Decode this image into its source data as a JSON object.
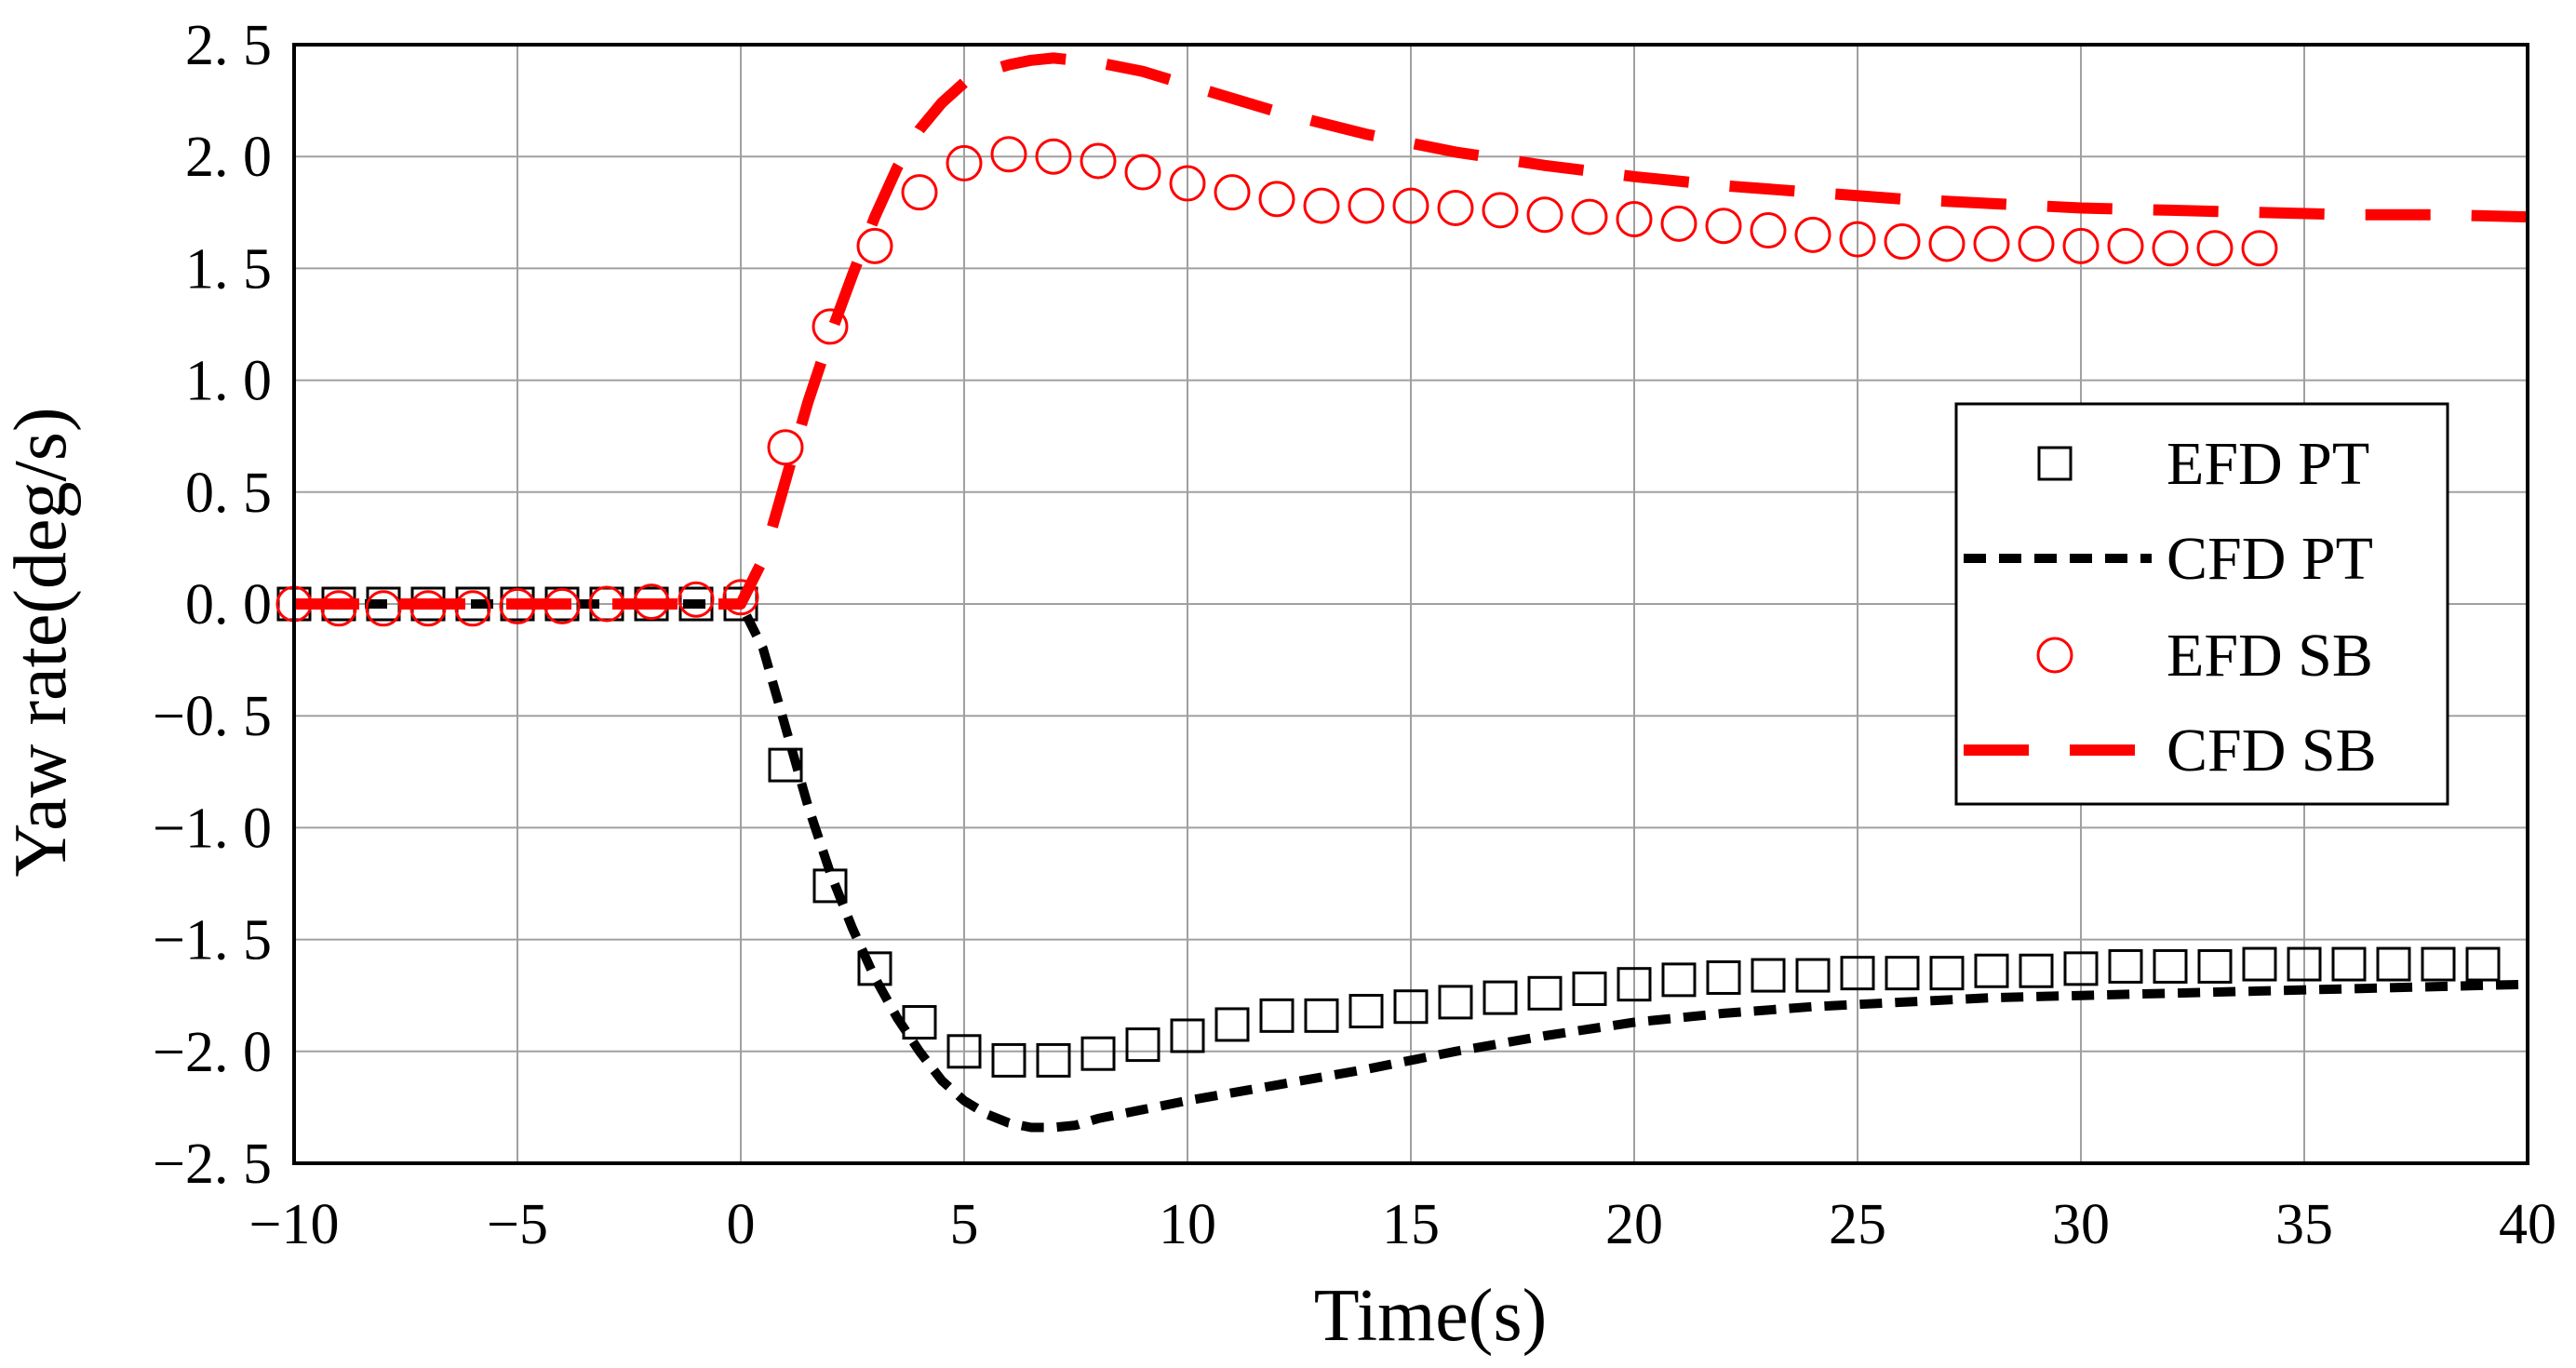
{
  "chart_data": {
    "type": "line",
    "title": "",
    "xlabel": "Time(s)",
    "ylabel": "Yaw rate(deg/s)",
    "xlim": [
      -10,
      40
    ],
    "ylim": [
      -2.5,
      2.5
    ],
    "grid": true,
    "legend_position": "right",
    "x_ticks": [
      -10,
      -5,
      0,
      5,
      10,
      15,
      20,
      25,
      30,
      35,
      40
    ],
    "y_ticks": [
      2.5,
      2.0,
      1.5,
      1.0,
      0.5,
      0.0,
      -0.5,
      -1.0,
      -1.5,
      -2.0,
      -2.5
    ],
    "x_tick_labels": [
      "−10",
      "−5",
      "0",
      "5",
      "10",
      "15",
      "20",
      "25",
      "30",
      "35",
      "40"
    ],
    "y_tick_labels": [
      "2. 5",
      "2. 0",
      "1. 5",
      "1. 0",
      "0. 5",
      "0. 0",
      "−0. 5",
      "−1. 0",
      "−1. 5",
      "−2. 0",
      "−2. 5"
    ],
    "series": [
      {
        "name": "EFD PT",
        "style": "square-marker",
        "color": "#000000",
        "x": [
          -10,
          -9,
          -8,
          -7,
          -6,
          -5,
          -4,
          -3,
          -2,
          -1,
          0,
          1,
          2,
          3,
          4,
          5,
          6,
          7,
          8,
          9,
          10,
          11,
          12,
          13,
          14,
          15,
          16,
          17,
          18,
          19,
          20,
          21,
          22,
          23,
          24,
          25,
          26,
          27,
          28,
          29,
          30,
          31,
          32,
          33,
          34,
          35,
          36,
          37,
          38,
          39
        ],
        "y": [
          0.0,
          0.0,
          0.0,
          0.0,
          0.0,
          0.0,
          0.0,
          0.0,
          0.0,
          0.0,
          0.0,
          -0.72,
          -1.26,
          -1.63,
          -1.87,
          -2.0,
          -2.04,
          -2.04,
          -2.01,
          -1.97,
          -1.93,
          -1.88,
          -1.84,
          -1.84,
          -1.82,
          -1.8,
          -1.78,
          -1.76,
          -1.74,
          -1.72,
          -1.7,
          -1.68,
          -1.67,
          -1.66,
          -1.66,
          -1.65,
          -1.65,
          -1.65,
          -1.64,
          -1.64,
          -1.63,
          -1.62,
          -1.62,
          -1.62,
          -1.61,
          -1.61,
          -1.61,
          -1.61,
          -1.61,
          -1.61
        ]
      },
      {
        "name": "CFD PT",
        "style": "short-dash",
        "color": "#000000",
        "x": [
          -10,
          -5,
          0,
          0.5,
          1,
          1.5,
          2,
          2.5,
          3,
          3.5,
          4,
          4.5,
          5,
          5.5,
          6,
          6.5,
          7,
          7.5,
          8,
          9,
          10,
          12,
          14,
          16,
          18,
          20,
          22,
          24,
          26,
          28,
          30,
          32,
          34,
          36,
          38,
          40
        ],
        "y": [
          0.0,
          0.0,
          0.0,
          -0.2,
          -0.55,
          -0.9,
          -1.2,
          -1.45,
          -1.67,
          -1.85,
          -2.0,
          -2.13,
          -2.22,
          -2.28,
          -2.32,
          -2.34,
          -2.34,
          -2.33,
          -2.3,
          -2.26,
          -2.22,
          -2.15,
          -2.08,
          -2.0,
          -1.93,
          -1.87,
          -1.83,
          -1.8,
          -1.78,
          -1.76,
          -1.75,
          -1.74,
          -1.73,
          -1.72,
          -1.71,
          -1.7
        ]
      },
      {
        "name": "EFD SB",
        "style": "circle-marker",
        "color": "#ff0000",
        "x": [
          -10,
          -9,
          -8,
          -7,
          -6,
          -5,
          -4,
          -3,
          -2,
          -1,
          0,
          1,
          2,
          3,
          4,
          5,
          6,
          7,
          8,
          9,
          10,
          11,
          12,
          13,
          14,
          15,
          16,
          17,
          18,
          19,
          20,
          21,
          22,
          23,
          24,
          25,
          26,
          27,
          28,
          29,
          30,
          31,
          32,
          33,
          34
        ],
        "y": [
          0.0,
          -0.02,
          -0.02,
          -0.02,
          -0.02,
          -0.01,
          -0.01,
          0.0,
          0.01,
          0.02,
          0.03,
          0.7,
          1.24,
          1.6,
          1.84,
          1.97,
          2.01,
          2.0,
          1.98,
          1.93,
          1.88,
          1.84,
          1.81,
          1.78,
          1.78,
          1.78,
          1.77,
          1.76,
          1.74,
          1.73,
          1.72,
          1.7,
          1.69,
          1.67,
          1.65,
          1.63,
          1.62,
          1.61,
          1.61,
          1.61,
          1.6,
          1.6,
          1.59,
          1.59,
          1.59
        ]
      },
      {
        "name": "CFD SB",
        "style": "long-dash",
        "color": "#ff0000",
        "x": [
          -10,
          -5,
          0,
          0.5,
          1,
          1.5,
          2,
          2.5,
          3,
          3.5,
          4,
          4.5,
          5,
          5.5,
          6,
          6.5,
          7,
          8,
          9,
          10,
          12,
          14,
          16,
          18,
          20,
          22,
          24,
          26,
          28,
          30,
          32,
          34,
          36,
          38,
          40
        ],
        "y": [
          0.0,
          0.0,
          0.0,
          0.2,
          0.55,
          0.9,
          1.2,
          1.47,
          1.73,
          1.95,
          2.12,
          2.24,
          2.33,
          2.38,
          2.41,
          2.43,
          2.44,
          2.42,
          2.38,
          2.32,
          2.2,
          2.1,
          2.02,
          1.96,
          1.91,
          1.87,
          1.84,
          1.81,
          1.79,
          1.77,
          1.76,
          1.75,
          1.74,
          1.74,
          1.73
        ]
      }
    ]
  }
}
